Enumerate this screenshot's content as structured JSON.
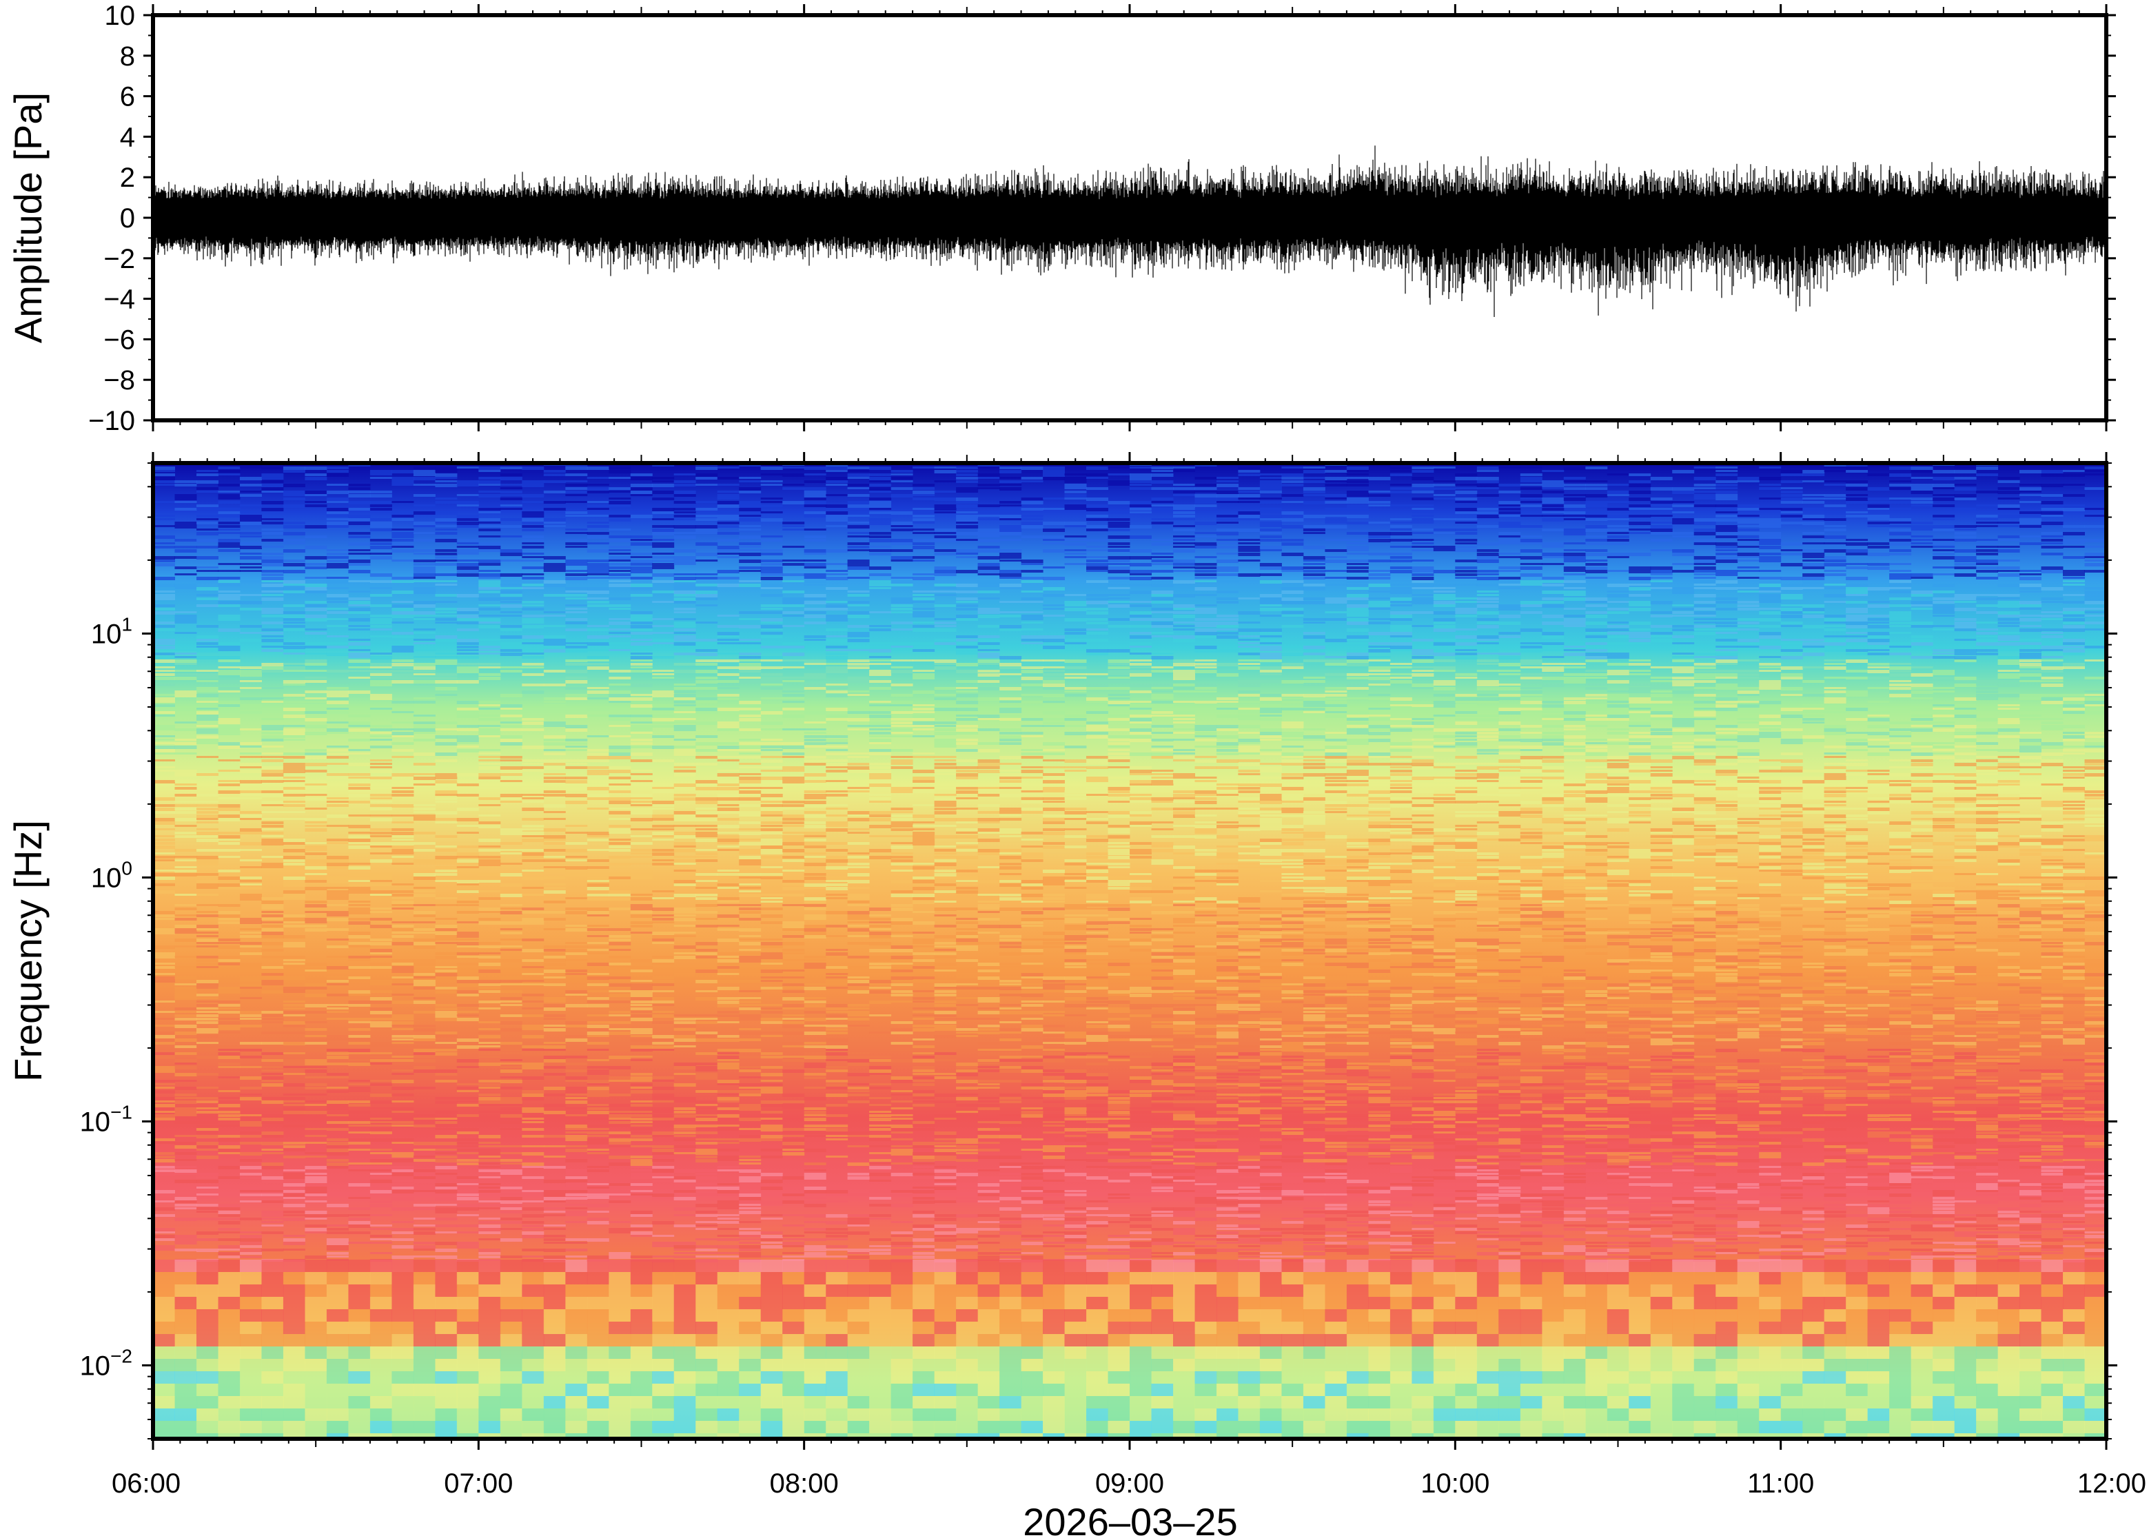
{
  "chart_data": [
    {
      "type": "line",
      "panel": "waveform",
      "ylabel": "Amplitude [Pa]",
      "ylim": [
        -10,
        10
      ],
      "y_ticks": [
        10,
        8,
        6,
        4,
        2,
        0,
        -2,
        -4,
        -6,
        -8,
        -10
      ],
      "y_tick_labels": [
        "10",
        "8",
        "6",
        "4",
        "2",
        "0",
        "−2",
        "−4",
        "−6",
        "−8",
        "−10"
      ],
      "x_range": [
        "06:00",
        "12:00"
      ],
      "envelope": {
        "x": [
          "06:00",
          "06:15",
          "06:30",
          "06:45",
          "07:00",
          "07:15",
          "07:30",
          "07:45",
          "08:00",
          "08:15",
          "08:30",
          "08:45",
          "09:00",
          "09:15",
          "09:30",
          "09:45",
          "10:00",
          "10:15",
          "10:30",
          "10:45",
          "11:00",
          "11:15",
          "11:30",
          "11:45",
          "12:00"
        ],
        "max": [
          2.0,
          2.0,
          2.2,
          2.0,
          2.2,
          2.4,
          2.6,
          2.4,
          2.2,
          2.4,
          2.6,
          2.8,
          2.8,
          3.0,
          3.0,
          3.6,
          3.2,
          3.2,
          3.0,
          3.0,
          3.0,
          3.2,
          3.0,
          3.0,
          2.6
        ],
        "min": [
          -2.2,
          -2.6,
          -2.4,
          -2.4,
          -2.2,
          -2.4,
          -3.4,
          -2.6,
          -2.4,
          -2.6,
          -2.8,
          -3.4,
          -3.0,
          -3.0,
          -3.0,
          -3.0,
          -5.6,
          -4.2,
          -5.4,
          -3.6,
          -5.4,
          -3.6,
          -3.2,
          -3.2,
          -2.6
        ]
      }
    },
    {
      "type": "heatmap",
      "panel": "spectrogram",
      "ylabel": "Frequency [Hz]",
      "y_scale": "log",
      "ylim": [
        0.005,
        50
      ],
      "y_ticks": [
        {
          "base": "10",
          "exp": "1",
          "value": 10
        },
        {
          "base": "10",
          "exp": "0",
          "value": 1
        },
        {
          "base": "10",
          "exp": "−1",
          "value": 0.1
        },
        {
          "base": "10",
          "exp": "−2",
          "value": 0.01
        }
      ],
      "x_ticks": [
        "06:00",
        "07:00",
        "08:00",
        "09:00",
        "10:00",
        "11:00",
        "12:00"
      ],
      "xlabel": "2026–03–25",
      "colormap": "rainbow (blue = low power, red = high power)",
      "colors": {
        "low": "#0a0aa8",
        "mid_low": "#35c3f0",
        "mid": "#d9f08f",
        "mid_high": "#f7a84a",
        "high": "#f0565a",
        "peak": "#fb8fa0"
      }
    }
  ]
}
